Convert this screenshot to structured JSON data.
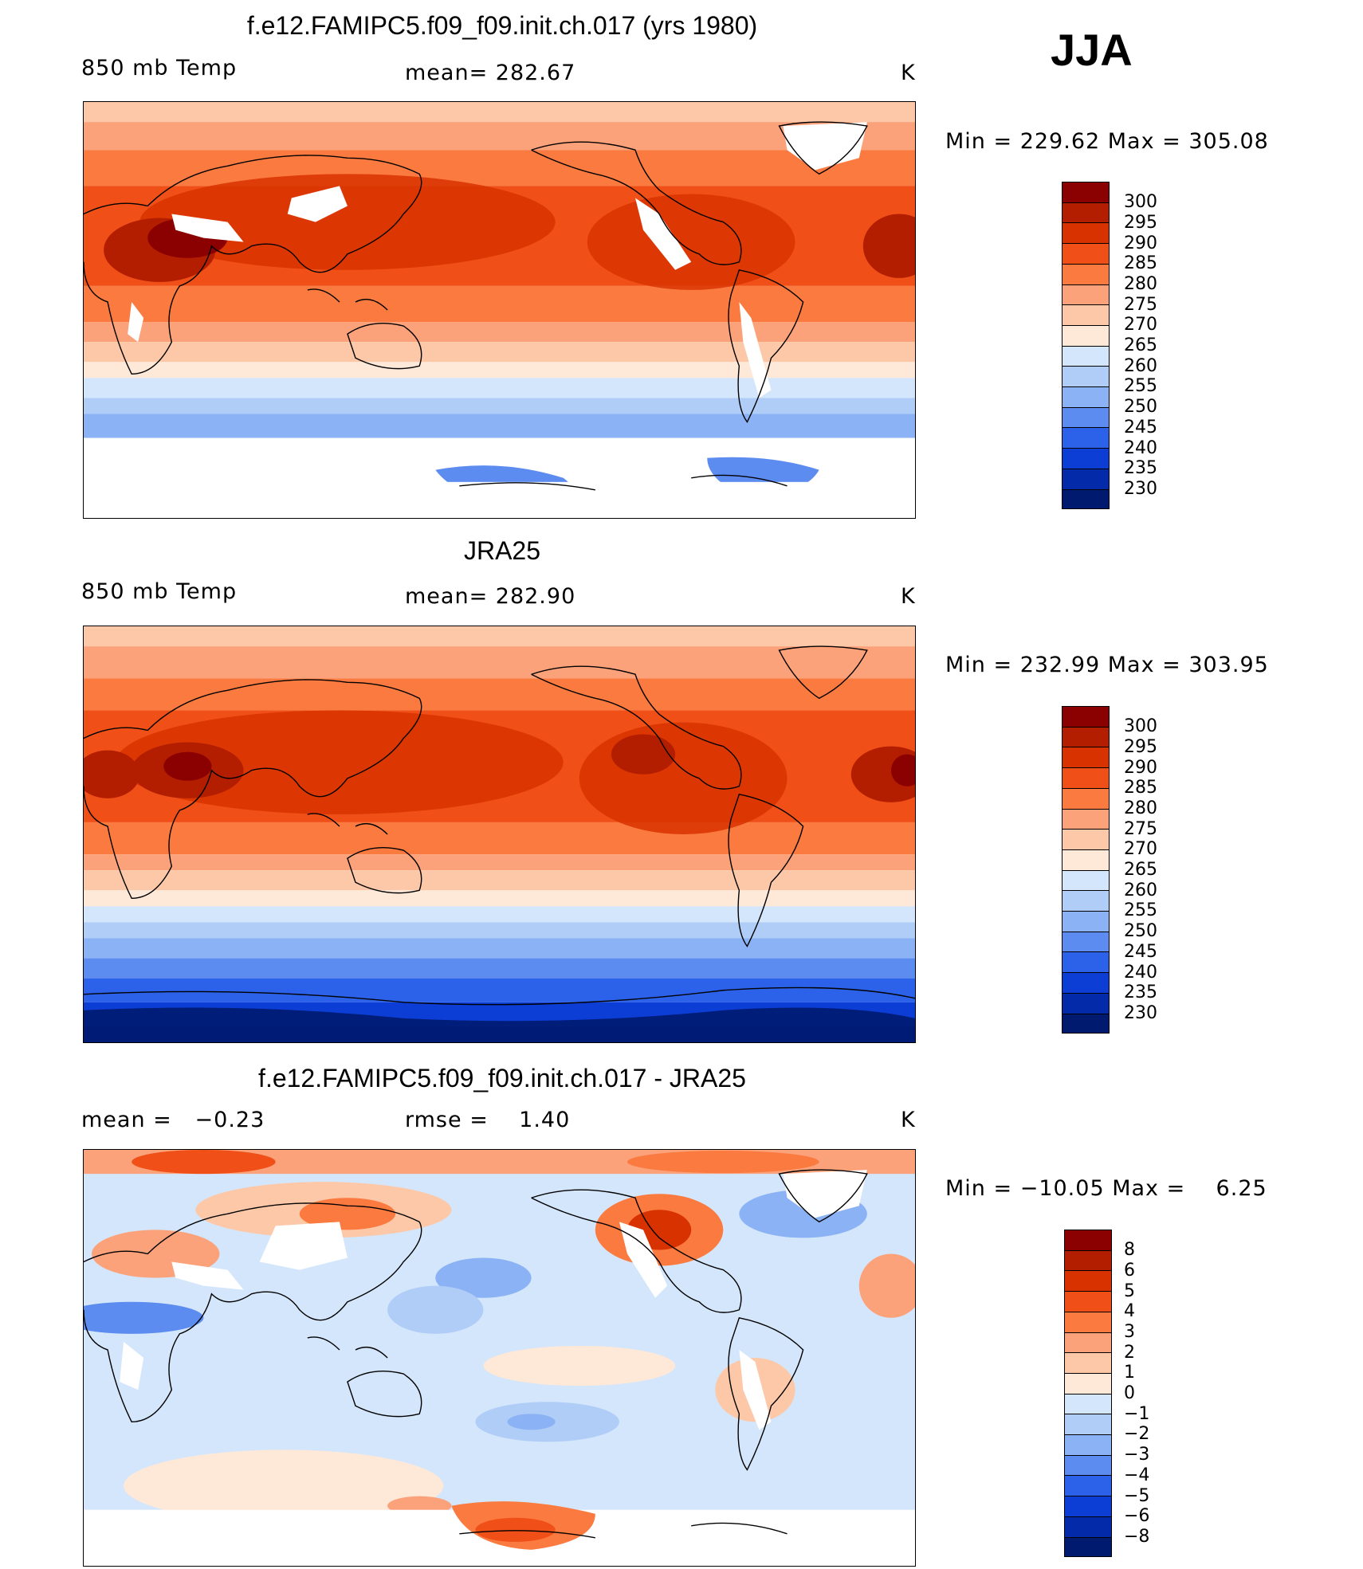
{
  "season": "JJA",
  "panels": [
    {
      "id": "model",
      "title": "f.e12.FAMIPC5.f09_f09.init.ch.017 (yrs 1980)",
      "left_label": "850 mb Temp",
      "center_label": "mean= 282.67",
      "units": "K",
      "minmax": "Min = 229.62 Max = 305.08",
      "colorbar_labels": [
        "300",
        "295",
        "290",
        "285",
        "280",
        "275",
        "270",
        "265",
        "260",
        "255",
        "250",
        "245",
        "240",
        "235",
        "230"
      ],
      "map_content": "model"
    },
    {
      "id": "obs",
      "title": "JRA25",
      "left_label": "850 mb Temp",
      "center_label": "mean= 282.90",
      "units": "K",
      "minmax": "Min = 232.99 Max = 303.95",
      "colorbar_labels": [
        "300",
        "295",
        "290",
        "285",
        "280",
        "275",
        "270",
        "265",
        "260",
        "255",
        "250",
        "245",
        "240",
        "235",
        "230"
      ],
      "map_content": "obs"
    },
    {
      "id": "diff",
      "title": "f.e12.FAMIPC5.f09_f09.init.ch.017 - JRA25",
      "left_label": "mean =   −0.23",
      "center_label": "rmse =    1.40",
      "units": "K",
      "minmax": "Min = −10.05 Max =    6.25",
      "colorbar_labels": [
        "8",
        "6",
        "5",
        "4",
        "3",
        "2",
        "1",
        "0",
        "−1",
        "−2",
        "−3",
        "−4",
        "−5",
        "−6",
        "−8"
      ],
      "map_content": "diff"
    }
  ],
  "colors": {
    "abs_scale": [
      "#8b0000",
      "#b41e00",
      "#d83200",
      "#f05018",
      "#fa7a40",
      "#fca27a",
      "#fdc8a8",
      "#fee8d8",
      "#d4e6fb",
      "#b0cdf7",
      "#8ab2f4",
      "#5c8cf0",
      "#2c62ea",
      "#0c3ed6",
      "#032aa8",
      "#001a70"
    ],
    "diff_scale": [
      "#8b0000",
      "#b41e00",
      "#d83200",
      "#f05018",
      "#fa7a40",
      "#fca27a",
      "#fdc8a8",
      "#fee8d8",
      "#d4e6fb",
      "#b0cdf7",
      "#8ab2f4",
      "#5c8cf0",
      "#2c62ea",
      "#0c3ed6",
      "#032aa8",
      "#001a70"
    ],
    "coast": "#000000",
    "missing": "#ffffff"
  }
}
